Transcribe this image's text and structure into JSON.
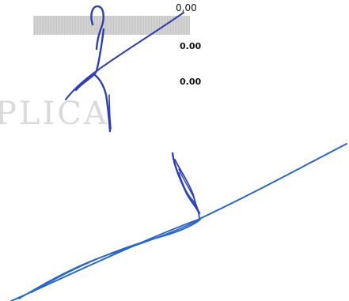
{
  "fields": [
    {
      "value": "0,00"
    },
    {
      "value": "0.00"
    },
    {
      "value": "0.00"
    }
  ],
  "watermark": "PLICA",
  "ink_color": "#2f3fae"
}
